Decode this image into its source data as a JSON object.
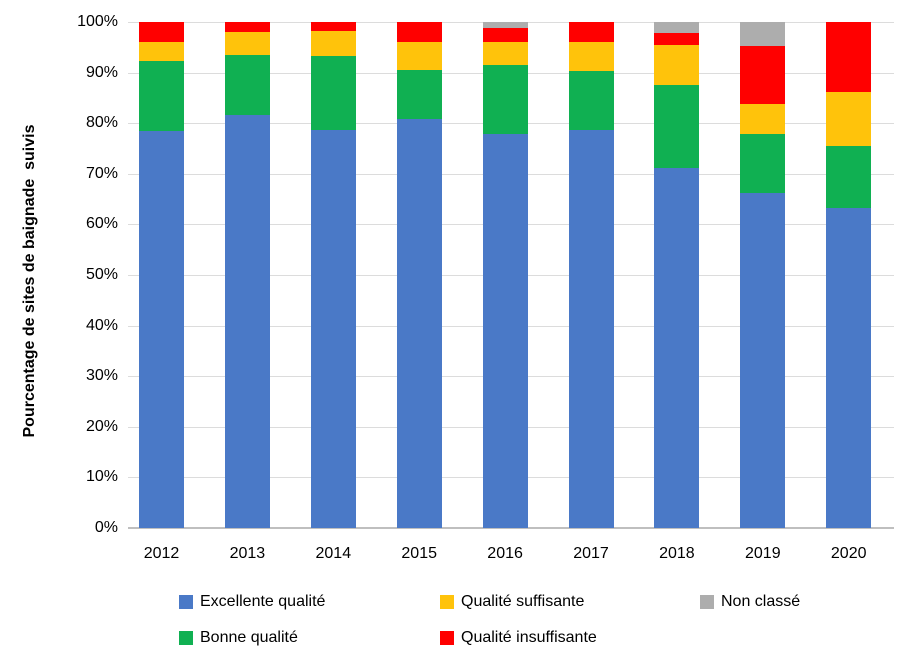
{
  "chart_data": {
    "type": "bar",
    "stacked": true,
    "categories": [
      "2012",
      "2013",
      "2014",
      "2015",
      "2016",
      "2017",
      "2018",
      "2019",
      "2020"
    ],
    "series": [
      {
        "name": "Excellente qualité",
        "color": "#4a79c7",
        "values": [
          78.5,
          81.6,
          78.7,
          80.8,
          77.8,
          78.6,
          71.1,
          66.2,
          63.3
        ]
      },
      {
        "name": "Bonne qualité",
        "color": "#10b052",
        "values": [
          13.8,
          11.9,
          14.5,
          9.8,
          13.7,
          11.8,
          16.5,
          11.7,
          12.2
        ]
      },
      {
        "name": "Qualité suffisante",
        "color": "#ffc30b",
        "values": [
          3.7,
          4.5,
          5.0,
          5.5,
          4.6,
          5.6,
          7.8,
          5.9,
          10.7
        ]
      },
      {
        "name": "Qualité insuffisante",
        "color": "#ff0000",
        "values": [
          4.0,
          2.0,
          1.8,
          3.9,
          2.8,
          4.0,
          2.5,
          11.5,
          13.8
        ]
      },
      {
        "name": "Non classé",
        "color": "#adadad",
        "values": [
          0.0,
          0.0,
          0.0,
          0.0,
          1.1,
          0.0,
          2.1,
          4.7,
          0.0
        ]
      }
    ],
    "title": "",
    "xlabel": "",
    "ylabel": "Pourcentage de sites de baignade  suivis",
    "ylim": [
      0,
      100
    ],
    "yticks": [
      "0%",
      "10%",
      "20%",
      "30%",
      "40%",
      "50%",
      "60%",
      "70%",
      "80%",
      "90%",
      "100%"
    ],
    "grid": true,
    "legend_position": "bottom",
    "gridline_color": "#dcdcdc",
    "baseline_color": "#bfbfbf"
  }
}
